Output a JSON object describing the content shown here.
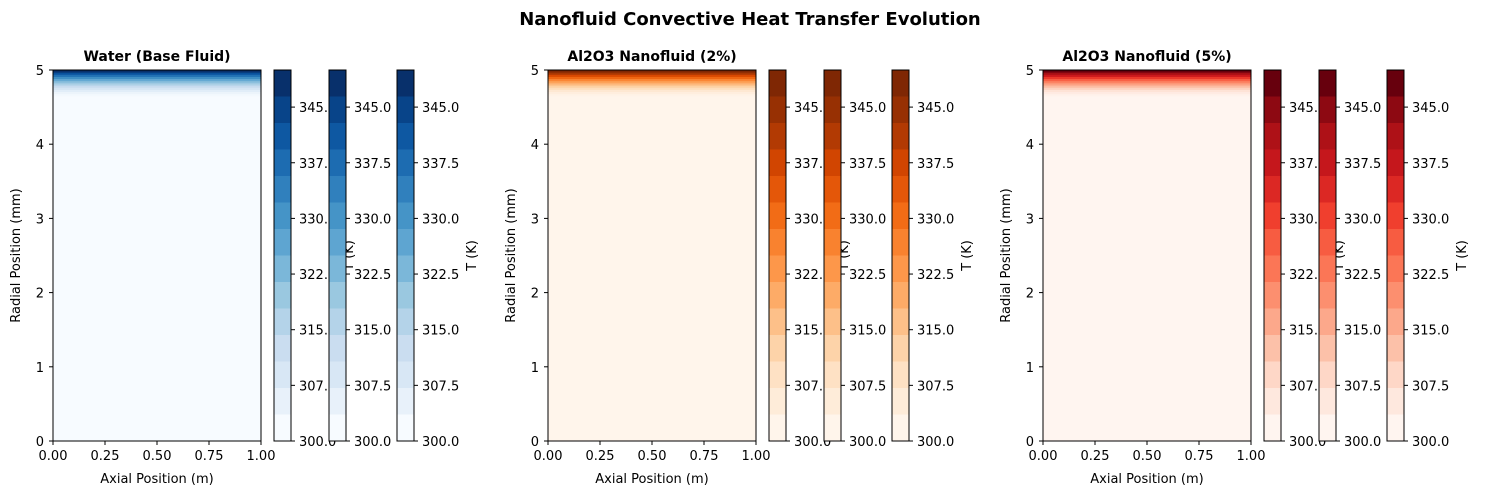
{
  "figure": {
    "title": "Nanofluid Convective Heat Transfer Evolution"
  },
  "chart_data": [
    {
      "type": "heatmap",
      "title": "Water (Base Fluid)",
      "xlabel": "Axial Position (m)",
      "ylabel": "Radial Position (mm)",
      "xlim": [
        0,
        1
      ],
      "ylim": [
        0,
        5
      ],
      "x_ticks": [
        "0.00",
        "0.25",
        "0.50",
        "0.75",
        "1.00"
      ],
      "y_ticks": [
        "0",
        "1",
        "2",
        "3",
        "4",
        "5"
      ],
      "colormap": "Blues",
      "colors": [
        "#f7fbff",
        "#deebf7",
        "#c6dbef",
        "#9ecae1",
        "#6baed6",
        "#4292c6",
        "#2171b5",
        "#08519c",
        "#08306b"
      ],
      "temperature_profile": {
        "wall_temperature": 350,
        "bulk_temperature": 300,
        "thermal_layer_start_mm": 4.65,
        "radius_mm": 5
      },
      "colorbars": [
        {
          "label": "T (K)",
          "range": [
            300,
            350
          ],
          "ticks": [
            "300.0",
            "307.5",
            "315.0",
            "322.5",
            "330.0",
            "337.5",
            "345.0"
          ]
        },
        {
          "label": "T (K)",
          "range": [
            300,
            350
          ],
          "ticks": [
            "300.0",
            "307.5",
            "315.0",
            "322.5",
            "330.0",
            "337.5",
            "345.0"
          ]
        },
        {
          "label": "T (K)",
          "range": [
            300,
            350
          ],
          "ticks": [
            "300.0",
            "307.5",
            "315.0",
            "322.5",
            "330.0",
            "337.5",
            "345.0"
          ]
        }
      ]
    },
    {
      "type": "heatmap",
      "title": "Al2O3 Nanofluid (2%)",
      "xlabel": "Axial Position (m)",
      "ylabel": "Radial Position (mm)",
      "xlim": [
        0,
        1
      ],
      "ylim": [
        0,
        5
      ],
      "x_ticks": [
        "0.00",
        "0.25",
        "0.50",
        "0.75",
        "1.00"
      ],
      "y_ticks": [
        "0",
        "1",
        "2",
        "3",
        "4",
        "5"
      ],
      "colormap": "Oranges",
      "colors": [
        "#fff5eb",
        "#fee6ce",
        "#fdd0a2",
        "#fdae6b",
        "#fd8d3c",
        "#f16913",
        "#d94801",
        "#a63603",
        "#7f2704"
      ],
      "temperature_profile": {
        "wall_temperature": 350,
        "bulk_temperature": 300,
        "thermal_layer_start_mm": 4.65,
        "radius_mm": 5
      },
      "colorbars": [
        {
          "label": "T (K)",
          "range": [
            300,
            350
          ],
          "ticks": [
            "300.0",
            "307.5",
            "315.0",
            "322.5",
            "330.0",
            "337.5",
            "345.0"
          ]
        },
        {
          "label": "T (K)",
          "range": [
            300,
            350
          ],
          "ticks": [
            "300.0",
            "307.5",
            "315.0",
            "322.5",
            "330.0",
            "337.5",
            "345.0"
          ]
        },
        {
          "label": "T (K)",
          "range": [
            300,
            350
          ],
          "ticks": [
            "300.0",
            "307.5",
            "315.0",
            "322.5",
            "330.0",
            "337.5",
            "345.0"
          ]
        }
      ]
    },
    {
      "type": "heatmap",
      "title": "Al2O3 Nanofluid (5%)",
      "xlabel": "Axial Position (m)",
      "ylabel": "Radial Position (mm)",
      "xlim": [
        0,
        1
      ],
      "ylim": [
        0,
        5
      ],
      "x_ticks": [
        "0.00",
        "0.25",
        "0.50",
        "0.75",
        "1.00"
      ],
      "y_ticks": [
        "0",
        "1",
        "2",
        "3",
        "4",
        "5"
      ],
      "colormap": "Reds",
      "colors": [
        "#fff5f0",
        "#fee0d2",
        "#fcbba1",
        "#fc9272",
        "#fb6a4a",
        "#ef3b2c",
        "#cb181d",
        "#a50f15",
        "#67000d"
      ],
      "temperature_profile": {
        "wall_temperature": 350,
        "bulk_temperature": 300,
        "thermal_layer_start_mm": 4.65,
        "radius_mm": 5
      },
      "colorbars": [
        {
          "label": "T (K)",
          "range": [
            300,
            350
          ],
          "ticks": [
            "300.0",
            "307.5",
            "315.0",
            "322.5",
            "330.0",
            "337.5",
            "345.0"
          ]
        },
        {
          "label": "T (K)",
          "range": [
            300,
            350
          ],
          "ticks": [
            "300.0",
            "307.5",
            "315.0",
            "322.5",
            "330.0",
            "337.5",
            "345.0"
          ]
        },
        {
          "label": "T (K)",
          "range": [
            300,
            350
          ],
          "ticks": [
            "300.0",
            "307.5",
            "315.0",
            "322.5",
            "330.0",
            "337.5",
            "345.0"
          ]
        }
      ]
    }
  ]
}
